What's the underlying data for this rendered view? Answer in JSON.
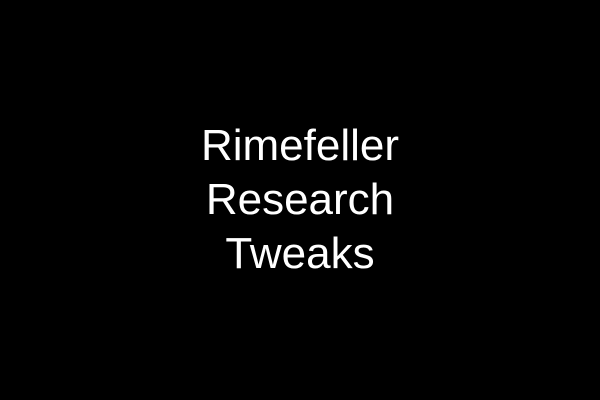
{
  "colors": {
    "background": "#000000",
    "text": "#ffffff"
  },
  "title": {
    "line1": "Rimefeller",
    "line2": "Research",
    "line3": "Tweaks"
  }
}
